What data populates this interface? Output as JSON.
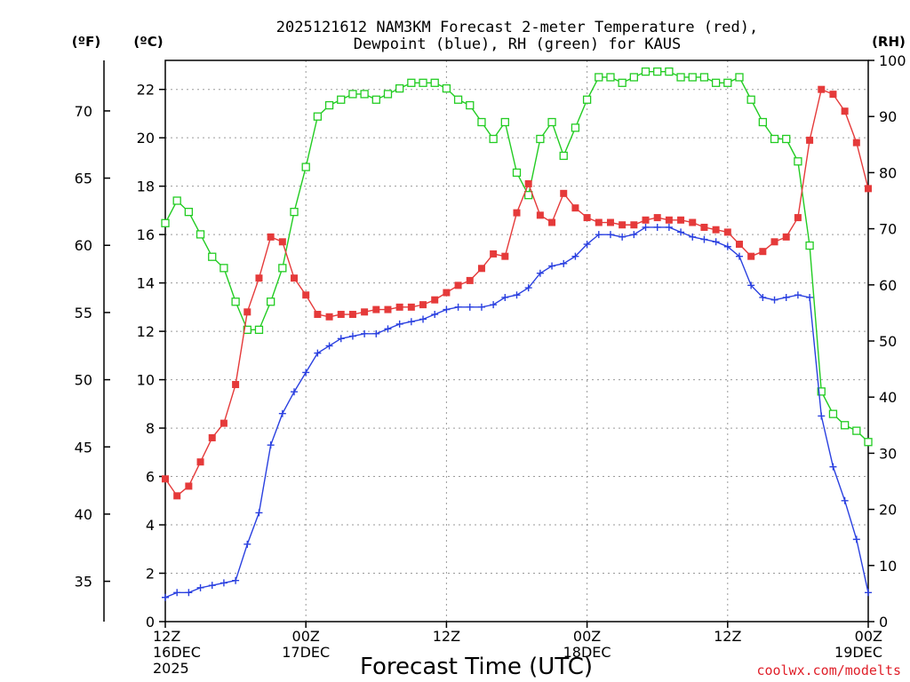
{
  "colors": {
    "temp": "#e53a3a",
    "dew": "#2a40e0",
    "rh": "#22cc22",
    "credit": "#e0202a"
  },
  "chart_data": {
    "type": "line",
    "title_line1": "2025121612 NAM3KM Forecast 2-meter Temperature (red),",
    "title_line2": "Dewpoint (blue), RH (green) for KAUS",
    "left_unit_f": "(ºF)",
    "left_unit_c": "(ºC)",
    "right_unit": "(RH)",
    "xlabel": "Forecast Time (UTC)",
    "credit": "coolwx.com/modelts",
    "x_range_hours": [
      0,
      60
    ],
    "ylim_c": [
      0,
      23.2
    ],
    "ylim_rh": [
      0,
      100
    ],
    "y_ticks_c": [
      "0",
      "2",
      "4",
      "6",
      "8",
      "10",
      "12",
      "14",
      "16",
      "18",
      "20",
      "22"
    ],
    "y_ticks_f": [
      "35",
      "40",
      "45",
      "50",
      "55",
      "60",
      "65",
      "70"
    ],
    "y_ticks_rh": [
      "0",
      "10",
      "20",
      "30",
      "40",
      "50",
      "60",
      "70",
      "80",
      "90",
      "100"
    ],
    "x_ticks": [
      {
        "hour": 0,
        "line1": "12Z",
        "line2": "16DEC",
        "line3": "2025"
      },
      {
        "hour": 12,
        "line1": "00Z",
        "line2": "17DEC",
        "line3": ""
      },
      {
        "hour": 24,
        "line1": "12Z",
        "line2": "",
        "line3": ""
      },
      {
        "hour": 36,
        "line1": "00Z",
        "line2": "18DEC",
        "line3": ""
      },
      {
        "hour": 48,
        "line1": "12Z",
        "line2": "",
        "line3": ""
      },
      {
        "hour": 60,
        "line1": "00Z",
        "line2": "19DEC",
        "line3": ""
      }
    ],
    "series": [
      {
        "name": "Temperature",
        "unit": "C",
        "hours": [
          0,
          1,
          2,
          3,
          4,
          5,
          6,
          7,
          8,
          9,
          10,
          11,
          12,
          13,
          14,
          15,
          16,
          17,
          18,
          19,
          20,
          21,
          22,
          23,
          24,
          25,
          26,
          27,
          28,
          29,
          30,
          31,
          32,
          33,
          34,
          35,
          36,
          37,
          38,
          39,
          40,
          41,
          42,
          43,
          44,
          45,
          46,
          47,
          48,
          49,
          50,
          51,
          52,
          53,
          54,
          55,
          56,
          57,
          58,
          59,
          60
        ],
        "values": [
          5.9,
          5.2,
          5.6,
          6.6,
          7.6,
          8.2,
          9.8,
          12.8,
          14.2,
          15.9,
          15.7,
          14.2,
          13.5,
          12.7,
          12.6,
          12.7,
          12.7,
          12.8,
          12.9,
          12.9,
          13.0,
          13.0,
          13.1,
          13.3,
          13.6,
          13.9,
          14.1,
          14.6,
          15.2,
          15.1,
          16.9,
          18.1,
          16.8,
          16.5,
          17.7,
          17.1,
          16.7,
          16.5,
          16.5,
          16.4,
          16.4,
          16.6,
          16.7,
          16.6,
          16.6,
          16.5,
          16.3,
          16.2,
          16.1,
          15.6,
          15.1,
          15.3,
          15.7,
          15.9,
          16.7,
          19.9,
          22.0,
          21.8,
          21.1,
          19.8,
          17.9
        ]
      },
      {
        "name": "Dewpoint",
        "unit": "C",
        "hours": [
          0,
          1,
          2,
          3,
          4,
          5,
          6,
          7,
          8,
          9,
          10,
          11,
          12,
          13,
          14,
          15,
          16,
          17,
          18,
          19,
          20,
          21,
          22,
          23,
          24,
          25,
          26,
          27,
          28,
          29,
          30,
          31,
          32,
          33,
          34,
          35,
          36,
          37,
          38,
          39,
          40,
          41,
          42,
          43,
          44,
          45,
          46,
          47,
          48,
          49,
          50,
          51,
          52,
          53,
          54,
          55,
          56,
          57,
          58,
          59,
          60
        ],
        "values": [
          1.0,
          1.2,
          1.2,
          1.4,
          1.5,
          1.6,
          1.7,
          3.2,
          4.5,
          7.3,
          8.6,
          9.5,
          10.3,
          11.1,
          11.4,
          11.7,
          11.8,
          11.9,
          11.9,
          12.1,
          12.3,
          12.4,
          12.5,
          12.7,
          12.9,
          13.0,
          13.0,
          13.0,
          13.1,
          13.4,
          13.5,
          13.8,
          14.4,
          14.7,
          14.8,
          15.1,
          15.6,
          16.0,
          16.0,
          15.9,
          16.0,
          16.3,
          16.3,
          16.3,
          16.1,
          15.9,
          15.8,
          15.7,
          15.5,
          15.1,
          13.9,
          13.4,
          13.3,
          13.4,
          13.5,
          13.4,
          8.5,
          6.4,
          5.0,
          3.4,
          1.2
        ]
      },
      {
        "name": "RH",
        "unit": "%",
        "hours": [
          0,
          1,
          2,
          3,
          4,
          5,
          6,
          7,
          8,
          9,
          10,
          11,
          12,
          13,
          14,
          15,
          16,
          17,
          18,
          19,
          20,
          21,
          22,
          23,
          24,
          25,
          26,
          27,
          28,
          29,
          30,
          31,
          32,
          33,
          34,
          35,
          36,
          37,
          38,
          39,
          40,
          41,
          42,
          43,
          44,
          45,
          46,
          47,
          48,
          49,
          50,
          51,
          52,
          53,
          54,
          55,
          56,
          57,
          58,
          59,
          60
        ],
        "values": [
          71,
          75,
          73,
          69,
          65,
          63,
          57,
          52,
          52,
          57,
          63,
          73,
          81,
          90,
          92,
          93,
          94,
          94,
          93,
          94,
          95,
          96,
          96,
          96,
          95,
          93,
          92,
          89,
          86,
          89,
          80,
          76,
          86,
          89,
          83,
          88,
          93,
          97,
          97,
          96,
          97,
          98,
          98,
          98,
          97,
          97,
          97,
          96,
          96,
          97,
          93,
          89,
          86,
          86,
          82,
          67,
          41,
          37,
          35,
          34,
          32
        ]
      }
    ]
  }
}
